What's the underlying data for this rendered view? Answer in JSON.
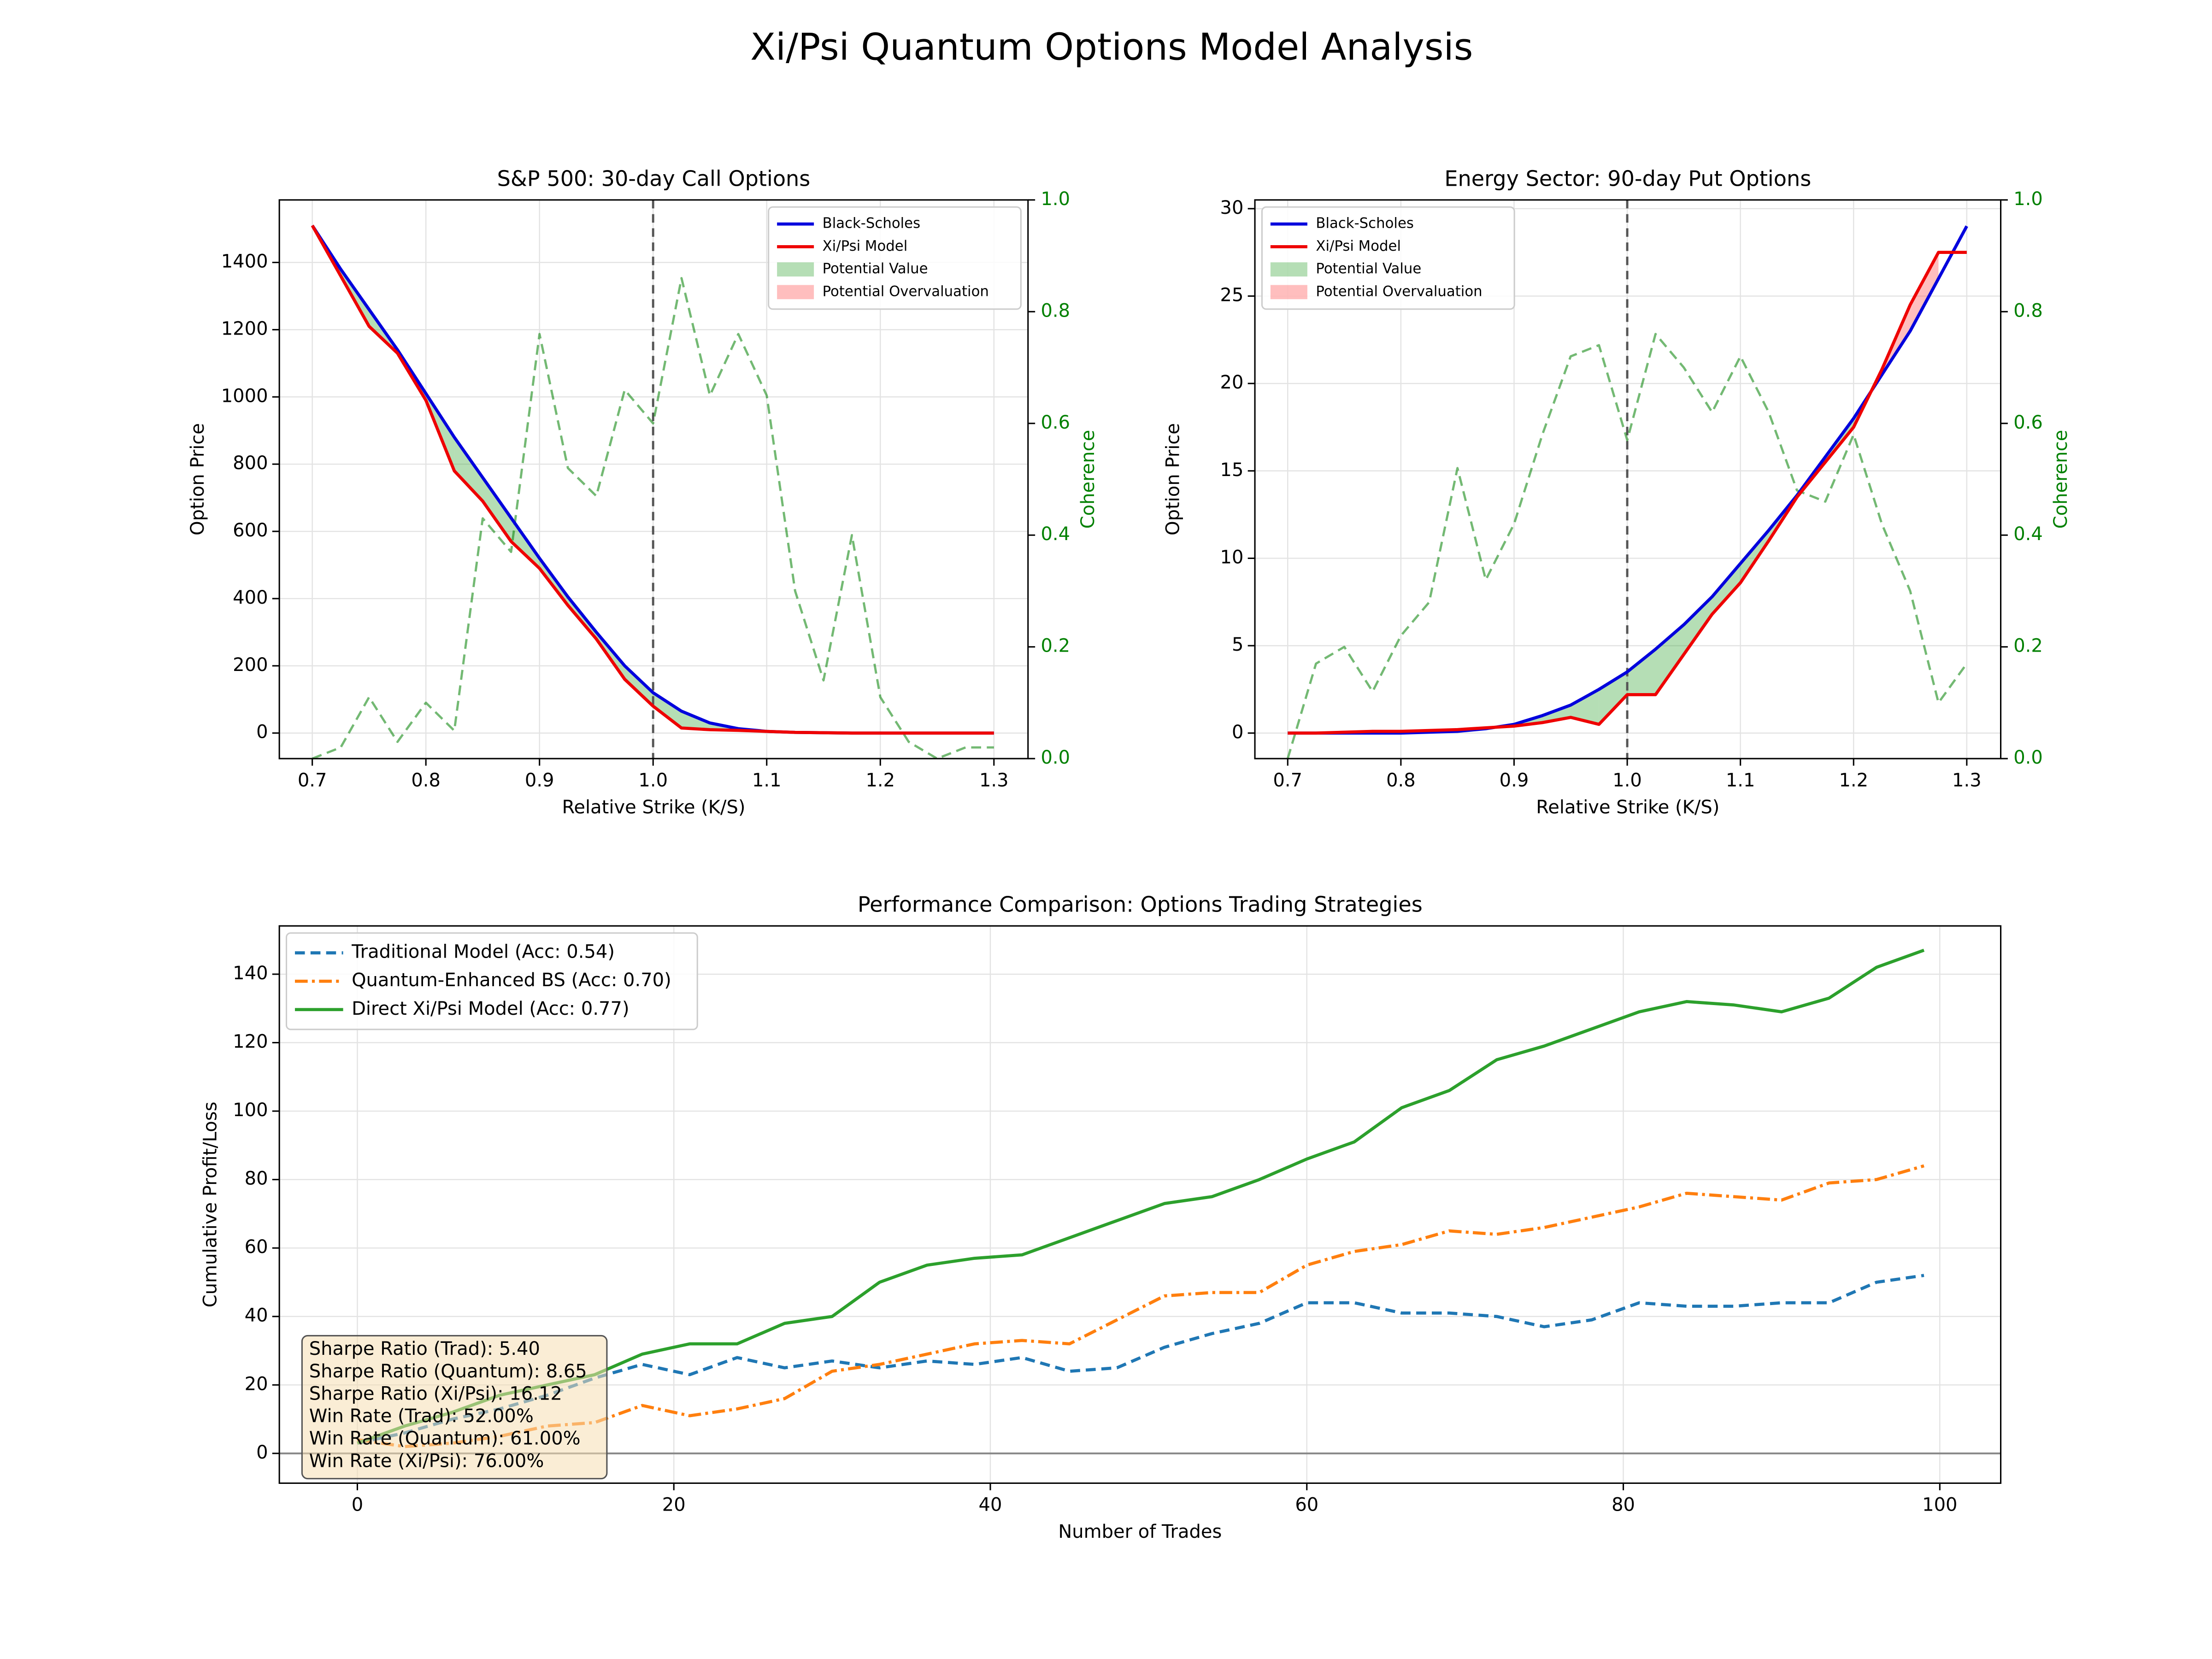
{
  "title": "Xi/Psi Quantum Options Model Analysis",
  "chart_data": [
    {
      "type": "line",
      "title": "S&P 500: 30-day Call Options",
      "xlabel": "Relative Strike (K/S)",
      "ylabel": "Option Price",
      "y2label": "Coherence",
      "x": [
        0.7,
        0.725,
        0.75,
        0.775,
        0.8,
        0.825,
        0.85,
        0.875,
        0.9,
        0.925,
        0.95,
        0.975,
        1.0,
        1.025,
        1.05,
        1.075,
        1.1,
        1.125,
        1.15,
        1.175,
        1.2,
        1.225,
        1.25,
        1.275,
        1.3
      ],
      "series": [
        {
          "name": "Black-Scholes",
          "color": "#0000dd",
          "linestyle": "-",
          "values": [
            1510,
            1380,
            1260,
            1140,
            1010,
            880,
            760,
            640,
            520,
            405,
            300,
            200,
            120,
            65,
            30,
            13,
            5,
            2,
            1,
            0,
            0,
            0,
            0,
            0,
            0
          ]
        },
        {
          "name": "Xi/Psi Model",
          "color": "#ee0000",
          "linestyle": "-",
          "values": [
            1510,
            1360,
            1210,
            1130,
            990,
            780,
            690,
            570,
            490,
            380,
            280,
            160,
            80,
            15,
            10,
            8,
            5,
            2,
            1,
            0,
            0,
            0,
            0,
            0,
            0
          ]
        },
        {
          "name": null,
          "color": "#008000",
          "linestyle": "--",
          "axis": "y2",
          "values": [
            0,
            0.02,
            0.11,
            0.03,
            0.1,
            0.05,
            0.43,
            0.37,
            0.76,
            0.52,
            0.47,
            0.66,
            0.6,
            0.86,
            0.65,
            0.76,
            0.65,
            0.3,
            0.14,
            0.4,
            0.11,
            0.03,
            0,
            0.02,
            0.02
          ]
        }
      ],
      "fills": [
        {
          "name": "Potential Value",
          "color": "#2ca02c"
        },
        {
          "name": "Potential Overvaluation",
          "color": "#ff4444"
        }
      ],
      "vline": 1.0,
      "legend": "upper right",
      "grid": true,
      "xlim": [
        0.671,
        1.33
      ],
      "xticks": [
        0.7,
        0.8,
        0.9,
        {
          "value": 1.0,
          "label": "1.0"
        },
        1.1,
        1.2,
        1.3
      ],
      "ylim": [
        -76,
        1586
      ],
      "yticks": [
        0,
        200,
        400,
        600,
        800,
        1000,
        1200,
        1400
      ],
      "y2lim": [
        0,
        1
      ],
      "y2ticks": [
        {
          "value": 0,
          "label": "0.0"
        },
        0.2,
        0.4,
        0.6,
        0.8,
        {
          "value": 1,
          "label": "1.0"
        }
      ]
    },
    {
      "type": "line",
      "title": "Energy Sector: 90-day Put Options",
      "xlabel": "Relative Strike (K/S)",
      "ylabel": "Option Price",
      "y2label": "Coherence",
      "x": [
        0.7,
        0.725,
        0.75,
        0.775,
        0.8,
        0.825,
        0.85,
        0.875,
        0.9,
        0.925,
        0.95,
        0.975,
        1.0,
        1.025,
        1.05,
        1.075,
        1.1,
        1.125,
        1.15,
        1.175,
        1.2,
        1.225,
        1.25,
        1.275,
        1.3
      ],
      "series": [
        {
          "name": "Black-Scholes",
          "color": "#0000dd",
          "linestyle": "-",
          "values": [
            0,
            0,
            0,
            0,
            0,
            0.05,
            0.1,
            0.25,
            0.5,
            1,
            1.6,
            2.5,
            3.5,
            4.8,
            6.2,
            7.8,
            9.7,
            11.6,
            13.6,
            15.8,
            18,
            20.5,
            23,
            26,
            29
          ]
        },
        {
          "name": "Xi/Psi Model",
          "color": "#ee0000",
          "linestyle": "-",
          "values": [
            0,
            0,
            0.05,
            0.1,
            0.1,
            0.15,
            0.2,
            0.3,
            0.4,
            0.6,
            0.9,
            0.5,
            2.2,
            2.2,
            4.5,
            6.8,
            8.6,
            11,
            13.5,
            15.5,
            17.5,
            20.8,
            24.5,
            27.5,
            27.5
          ]
        },
        {
          "name": null,
          "color": "#008000",
          "linestyle": "--",
          "axis": "y2",
          "values": [
            0,
            0.17,
            0.2,
            0.12,
            0.22,
            0.28,
            0.52,
            0.32,
            0.42,
            0.58,
            0.72,
            0.74,
            0.57,
            0.76,
            0.7,
            0.62,
            0.72,
            0.62,
            0.48,
            0.46,
            0.58,
            0.42,
            0.3,
            0.1,
            0.17
          ]
        }
      ],
      "fills": [
        {
          "name": "Potential Value",
          "color": "#2ca02c"
        },
        {
          "name": "Potential Overvaluation",
          "color": "#ff4444"
        }
      ],
      "vline": 1.0,
      "legend": "upper left",
      "grid": true,
      "xlim": [
        0.671,
        1.33
      ],
      "xticks": [
        0.7,
        0.8,
        0.9,
        {
          "value": 1.0,
          "label": "1.0"
        },
        1.1,
        1.2,
        1.3
      ],
      "ylim": [
        -1.46,
        30.5
      ],
      "yticks": [
        0,
        5,
        10,
        15,
        20,
        25,
        30
      ],
      "y2lim": [
        0,
        1
      ],
      "y2ticks": [
        {
          "value": 0,
          "label": "0.0"
        },
        0.2,
        0.4,
        0.6,
        0.8,
        {
          "value": 1,
          "label": "1.0"
        }
      ]
    },
    {
      "type": "line",
      "title": "Performance Comparison: Options Trading Strategies",
      "xlabel": "Number of Trades",
      "ylabel": "Cumulative Profit/Loss",
      "x": [
        0,
        3,
        6,
        9,
        12,
        15,
        18,
        21,
        24,
        27,
        30,
        33,
        36,
        39,
        42,
        45,
        48,
        51,
        54,
        57,
        60,
        63,
        66,
        69,
        72,
        75,
        78,
        81,
        84,
        87,
        90,
        93,
        96,
        99
      ],
      "series": [
        {
          "name": "Traditional Model (Acc: 0.54)",
          "color": "#1f77b4",
          "linestyle": "--",
          "values": [
            3,
            6,
            10,
            13,
            17,
            22,
            26,
            23,
            28,
            25,
            27,
            25,
            27,
            26,
            28,
            24,
            25,
            31,
            35,
            38,
            44,
            44,
            41,
            41,
            40,
            37,
            39,
            44,
            43,
            43,
            44,
            44,
            50,
            52
          ]
        },
        {
          "name": "Quantum-Enhanced BS (Acc: 0.70)",
          "color": "#ff7f0e",
          "linestyle": "-.",
          "values": [
            4,
            2,
            3,
            5,
            8,
            9,
            14,
            11,
            13,
            16,
            24,
            26,
            29,
            32,
            33,
            32,
            39,
            46,
            47,
            47,
            55,
            59,
            61,
            65,
            64,
            66,
            69,
            72,
            76,
            75,
            74,
            79,
            80,
            84
          ]
        },
        {
          "name": "Direct Xi/Psi Model (Acc: 0.77)",
          "color": "#2ca02c",
          "linestyle": "-",
          "values": [
            3,
            8,
            12,
            17,
            20,
            23,
            29,
            32,
            32,
            38,
            40,
            50,
            55,
            57,
            58,
            63,
            68,
            73,
            75,
            80,
            86,
            91,
            101,
            106,
            115,
            119,
            124,
            129,
            132,
            131,
            129,
            133,
            142,
            147
          ]
        }
      ],
      "hline": 0,
      "legend": "upper left",
      "grid": true,
      "annotation_lines": [
        "Sharpe Ratio (Trad): 5.40",
        "Sharpe Ratio (Quantum): 8.65",
        "Sharpe Ratio (Xi/Psi): 16.12",
        "Win Rate (Trad): 52.00%",
        "Win Rate (Quantum): 61.00%",
        "Win Rate (Xi/Psi): 76.00%"
      ],
      "xlim": [
        -4.93,
        103.85
      ],
      "xticks": [
        0,
        20,
        40,
        60,
        80,
        100
      ],
      "ylim": [
        -8.7,
        154.1
      ],
      "yticks": [
        0,
        20,
        40,
        60,
        80,
        100,
        120,
        140
      ]
    }
  ]
}
